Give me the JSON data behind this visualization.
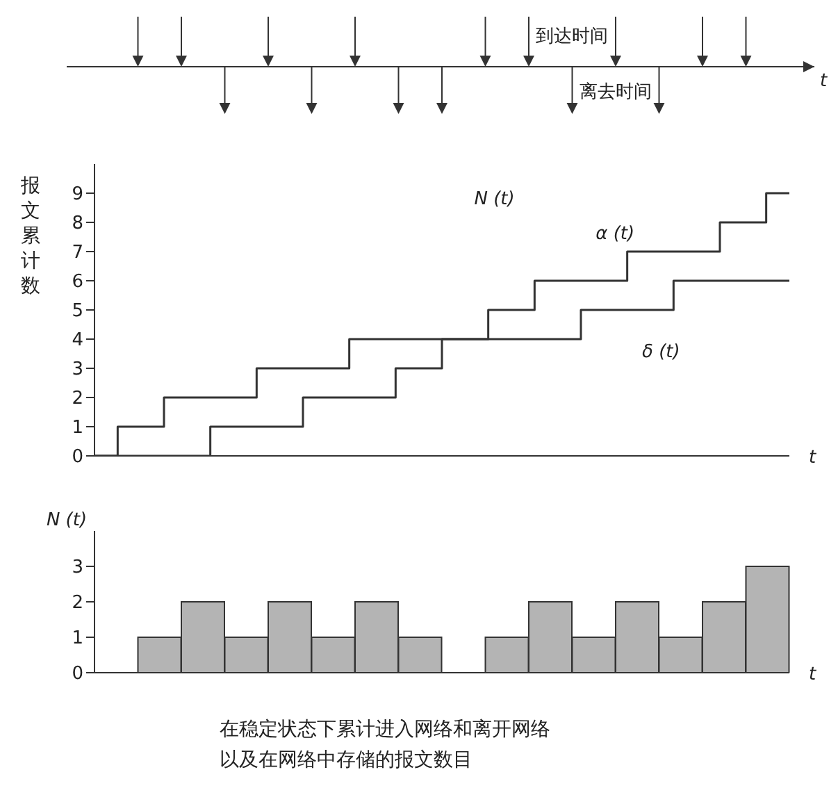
{
  "chart_data": [
    {
      "type": "step",
      "ylabel": "报文累计数",
      "xlabel": "t",
      "categories": [
        null,
        null,
        null,
        null,
        null,
        null,
        null,
        null,
        null,
        null,
        null,
        null,
        null,
        null,
        null,
        null
      ],
      "series": [
        {
          "name": "α (t)",
          "color": "#333333",
          "values": [
            0,
            1,
            2,
            2,
            3,
            3,
            4,
            4,
            4,
            5,
            6,
            6,
            7,
            7,
            8,
            9
          ]
        },
        {
          "name": "δ (t)",
          "color": "#333333",
          "values": [
            0,
            0,
            0,
            1,
            1,
            2,
            2,
            3,
            4,
            4,
            4,
            5,
            5,
            6,
            6,
            6
          ]
        }
      ],
      "ylim": [
        0,
        10
      ],
      "yticks": [
        0,
        1,
        2,
        3,
        4,
        5,
        6,
        7,
        8,
        9
      ],
      "tick_labels": "y",
      "annotations": [
        "N (t)",
        "到达时间",
        "离去时间",
        "t"
      ]
    },
    {
      "type": "bar",
      "ylabel": "N (t)",
      "xlabel": "t",
      "categories": [
        null,
        null,
        null,
        null,
        null,
        null,
        null,
        null,
        null,
        null,
        null,
        null,
        null,
        null,
        null,
        null
      ],
      "values": [
        0,
        1,
        2,
        1,
        2,
        1,
        2,
        1,
        0,
        1,
        2,
        1,
        2,
        1,
        2,
        3
      ],
      "color": "#b4b4b4",
      "ylim": [
        0,
        4
      ],
      "yticks": [
        0,
        1,
        2,
        3
      ],
      "tick_labels": "y",
      "annotations": [
        "在稳定状态下累计进入网络和离开网络",
        "以及在网络中存储的报文数目"
      ]
    }
  ]
}
